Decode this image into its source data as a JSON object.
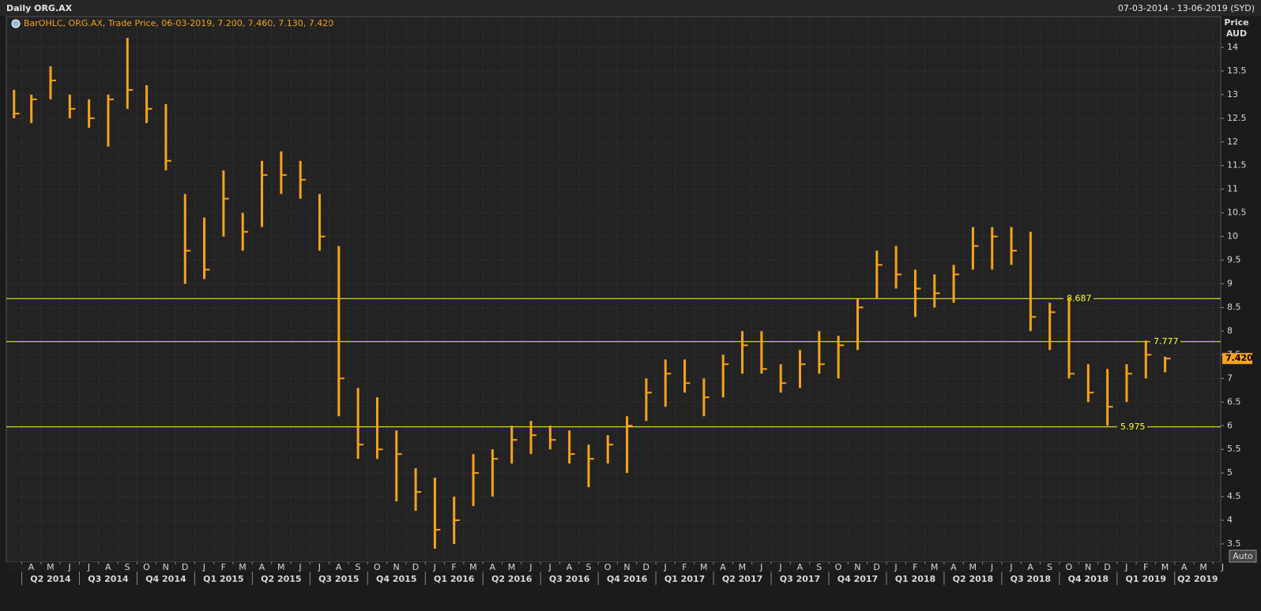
{
  "chart_data": {
    "type": "ohlc",
    "title": "Daily ORG.AX",
    "date_range": "07-03-2014 - 13-06-2019 (SYD)",
    "legend": "BarOHLC, ORG.AX, Trade Price, 06-03-2019, 7.200, 7.460, 7.130, 7.420",
    "y_label": "Price",
    "y_unit": "AUD",
    "button": "Auto",
    "color": "#f7a21b",
    "xlim": [
      "2014-03-07",
      "2019-06-13"
    ],
    "x": [
      "2014-03",
      "2014-04",
      "2014-05",
      "2014-06",
      "2014-07",
      "2014-08",
      "2014-09",
      "2014-10",
      "2014-11",
      "2014-12",
      "2015-01",
      "2015-02",
      "2015-03",
      "2015-04",
      "2015-05",
      "2015-06",
      "2015-07",
      "2015-08",
      "2015-09",
      "2015-10",
      "2015-11",
      "2015-12",
      "2016-01",
      "2016-02",
      "2016-03",
      "2016-04",
      "2016-05",
      "2016-06",
      "2016-07",
      "2016-08",
      "2016-09",
      "2016-10",
      "2016-11",
      "2016-12",
      "2017-01",
      "2017-02",
      "2017-03",
      "2017-04",
      "2017-05",
      "2017-06",
      "2017-07",
      "2017-08",
      "2017-09",
      "2017-10",
      "2017-11",
      "2017-12",
      "2018-01",
      "2018-02",
      "2018-03",
      "2018-04",
      "2018-05",
      "2018-06",
      "2018-07",
      "2018-08",
      "2018-09",
      "2018-10",
      "2018-11",
      "2018-12",
      "2019-01",
      "2019-02",
      "2019-03"
    ],
    "high": [
      13.1,
      13.0,
      13.6,
      13.0,
      12.9,
      13.0,
      14.2,
      13.2,
      12.8,
      10.9,
      10.4,
      11.4,
      10.5,
      11.6,
      11.8,
      11.6,
      10.9,
      9.8,
      6.8,
      6.6,
      5.9,
      5.1,
      4.9,
      4.5,
      5.4,
      5.5,
      6.0,
      6.1,
      6.0,
      5.9,
      5.6,
      5.8,
      6.2,
      7.0,
      7.4,
      7.4,
      7.0,
      7.5,
      8.0,
      8.0,
      7.3,
      7.6,
      8.0,
      7.9,
      8.7,
      9.7,
      9.8,
      9.3,
      9.2,
      9.4,
      10.2,
      10.2,
      10.2,
      10.1,
      8.6,
      8.7,
      7.3,
      7.2,
      7.3,
      7.8,
      7.46
    ],
    "low": [
      12.5,
      12.4,
      12.9,
      12.5,
      12.3,
      11.9,
      12.7,
      12.4,
      11.4,
      9.0,
      9.1,
      10.0,
      9.7,
      10.2,
      10.9,
      10.8,
      9.7,
      6.2,
      5.3,
      5.3,
      4.4,
      4.2,
      3.4,
      3.5,
      4.3,
      4.5,
      5.2,
      5.4,
      5.5,
      5.2,
      4.7,
      5.2,
      5.0,
      6.1,
      6.4,
      6.7,
      6.2,
      6.6,
      7.1,
      7.1,
      6.7,
      6.8,
      7.1,
      7.0,
      7.6,
      8.7,
      8.9,
      8.3,
      8.5,
      8.6,
      9.3,
      9.3,
      9.4,
      8.0,
      7.6,
      7.0,
      6.5,
      6.0,
      6.5,
      7.0,
      7.13
    ],
    "close": [
      12.6,
      12.9,
      13.3,
      12.7,
      12.5,
      12.9,
      13.1,
      12.7,
      11.6,
      9.7,
      9.3,
      10.8,
      10.1,
      11.3,
      11.3,
      11.2,
      10.0,
      7.0,
      5.6,
      5.5,
      5.4,
      4.6,
      3.8,
      4.0,
      5.0,
      5.3,
      5.7,
      5.8,
      5.7,
      5.4,
      5.3,
      5.6,
      6.0,
      6.7,
      7.1,
      6.9,
      6.6,
      7.3,
      7.7,
      7.2,
      6.9,
      7.3,
      7.3,
      7.7,
      8.5,
      9.4,
      9.2,
      8.9,
      8.8,
      9.2,
      9.8,
      10.0,
      9.7,
      8.3,
      8.4,
      7.1,
      6.7,
      6.4,
      7.1,
      7.5,
      7.42
    ],
    "last_price": {
      "value": 7.42,
      "label": "7.420"
    },
    "levels": [
      8.687,
      7.777,
      5.975
    ],
    "level_color": "#ffff33",
    "ylim": [
      3.15,
      14.4
    ],
    "yticks": [
      3.5,
      4,
      4.5,
      5,
      5.5,
      6,
      6.5,
      7,
      7.5,
      8,
      8.5,
      9,
      9.5,
      10,
      10.5,
      11,
      11.5,
      12,
      12.5,
      13,
      13.5,
      14
    ],
    "grid": true,
    "month_ticks": [
      {
        "value": "2014-04",
        "label": "A"
      },
      {
        "value": "2014-05",
        "label": "M"
      },
      {
        "value": "2014-06",
        "label": "J"
      },
      {
        "value": "2014-07",
        "label": "J"
      },
      {
        "value": "2014-08",
        "label": "A"
      },
      {
        "value": "2014-09",
        "label": "S"
      },
      {
        "value": "2014-10",
        "label": "O"
      },
      {
        "value": "2014-11",
        "label": "N"
      },
      {
        "value": "2014-12",
        "label": "D"
      },
      {
        "value": "2015-01",
        "label": "J"
      },
      {
        "value": "2015-02",
        "label": "F"
      },
      {
        "value": "2015-03",
        "label": "M"
      },
      {
        "value": "2015-04",
        "label": "A"
      },
      {
        "value": "2015-05",
        "label": "M"
      },
      {
        "value": "2015-06",
        "label": "J"
      },
      {
        "value": "2015-07",
        "label": "J"
      },
      {
        "value": "2015-08",
        "label": "A"
      },
      {
        "value": "2015-09",
        "label": "S"
      },
      {
        "value": "2015-10",
        "label": "O"
      },
      {
        "value": "2015-11",
        "label": "N"
      },
      {
        "value": "2015-12",
        "label": "D"
      },
      {
        "value": "2016-01",
        "label": "J"
      },
      {
        "value": "2016-02",
        "label": "F"
      },
      {
        "value": "2016-03",
        "label": "M"
      },
      {
        "value": "2016-04",
        "label": "A"
      },
      {
        "value": "2016-05",
        "label": "M"
      },
      {
        "value": "2016-06",
        "label": "J"
      },
      {
        "value": "2016-07",
        "label": "J"
      },
      {
        "value": "2016-08",
        "label": "A"
      },
      {
        "value": "2016-09",
        "label": "S"
      },
      {
        "value": "2016-10",
        "label": "O"
      },
      {
        "value": "2016-11",
        "label": "N"
      },
      {
        "value": "2016-12",
        "label": "D"
      },
      {
        "value": "2017-01",
        "label": "J"
      },
      {
        "value": "2017-02",
        "label": "F"
      },
      {
        "value": "2017-03",
        "label": "M"
      },
      {
        "value": "2017-04",
        "label": "A"
      },
      {
        "value": "2017-05",
        "label": "M"
      },
      {
        "value": "2017-06",
        "label": "J"
      },
      {
        "value": "2017-07",
        "label": "J"
      },
      {
        "value": "2017-08",
        "label": "A"
      },
      {
        "value": "2017-09",
        "label": "S"
      },
      {
        "value": "2017-10",
        "label": "O"
      },
      {
        "value": "2017-11",
        "label": "N"
      },
      {
        "value": "2017-12",
        "label": "D"
      },
      {
        "value": "2018-01",
        "label": "J"
      },
      {
        "value": "2018-02",
        "label": "F"
      },
      {
        "value": "2018-03",
        "label": "M"
      },
      {
        "value": "2018-04",
        "label": "A"
      },
      {
        "value": "2018-05",
        "label": "M"
      },
      {
        "value": "2018-06",
        "label": "J"
      },
      {
        "value": "2018-07",
        "label": "J"
      },
      {
        "value": "2018-08",
        "label": "A"
      },
      {
        "value": "2018-09",
        "label": "S"
      },
      {
        "value": "2018-10",
        "label": "O"
      },
      {
        "value": "2018-11",
        "label": "N"
      },
      {
        "value": "2018-12",
        "label": "D"
      },
      {
        "value": "2019-01",
        "label": "J"
      },
      {
        "value": "2019-02",
        "label": "F"
      },
      {
        "value": "2019-03",
        "label": "M"
      },
      {
        "value": "2019-04",
        "label": "A"
      },
      {
        "value": "2019-05",
        "label": "M"
      },
      {
        "value": "2019-06",
        "label": "J"
      }
    ],
    "quarter_ticks": [
      {
        "value": "2014-04",
        "label": "Q2 2014"
      },
      {
        "value": "2014-07",
        "label": "Q3 2014"
      },
      {
        "value": "2014-10",
        "label": "Q4 2014"
      },
      {
        "value": "2015-01",
        "label": "Q1 2015"
      },
      {
        "value": "2015-04",
        "label": "Q2 2015"
      },
      {
        "value": "2015-07",
        "label": "Q3 2015"
      },
      {
        "value": "2015-10",
        "label": "Q4 2015"
      },
      {
        "value": "2016-01",
        "label": "Q1 2016"
      },
      {
        "value": "2016-04",
        "label": "Q2 2016"
      },
      {
        "value": "2016-07",
        "label": "Q3 2016"
      },
      {
        "value": "2016-10",
        "label": "Q4 2016"
      },
      {
        "value": "2017-01",
        "label": "Q1 2017"
      },
      {
        "value": "2017-04",
        "label": "Q2 2017"
      },
      {
        "value": "2017-07",
        "label": "Q3 2017"
      },
      {
        "value": "2017-10",
        "label": "Q4 2017"
      },
      {
        "value": "2018-01",
        "label": "Q1 2018"
      },
      {
        "value": "2018-04",
        "label": "Q2 2018"
      },
      {
        "value": "2018-07",
        "label": "Q3 2018"
      },
      {
        "value": "2018-10",
        "label": "Q4 2018"
      },
      {
        "value": "2019-01",
        "label": "Q1 2019"
      },
      {
        "value": "2019-04",
        "label": "Q2 2019"
      }
    ]
  }
}
